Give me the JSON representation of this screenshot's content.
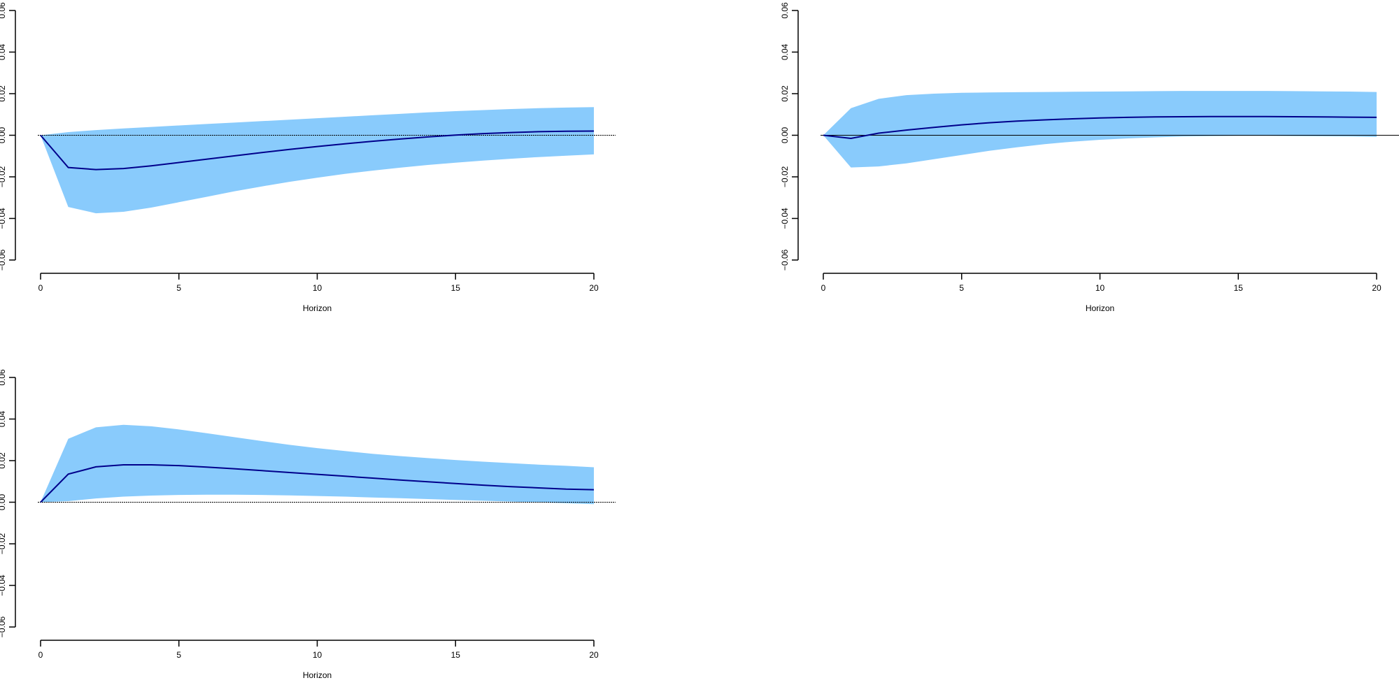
{
  "colors": {
    "band": "#89CBFC",
    "line": "#00008B",
    "axis": "#000000",
    "zero_line": "#000000"
  },
  "chart_data": [
    {
      "type": "area",
      "title": "",
      "xlabel": "Horizon",
      "ylabel": "",
      "xlim": [
        0,
        20
      ],
      "ylim": [
        -0.06,
        0.06
      ],
      "x_ticks": [
        "0",
        "5",
        "10",
        "15",
        "20"
      ],
      "y_ticks": [
        "−0.06",
        "−0.04",
        "−0.02",
        "0.00",
        "0.02",
        "0.04",
        "0.06"
      ],
      "grid": false,
      "zero_line": "dashed",
      "x": [
        0,
        1,
        2,
        3,
        4,
        5,
        6,
        7,
        8,
        9,
        10,
        11,
        12,
        13,
        14,
        15,
        16,
        17,
        18,
        19,
        20
      ],
      "series": [
        {
          "role": "lower",
          "values": [
            0,
            -0.0345,
            -0.0375,
            -0.0368,
            -0.0348,
            -0.0322,
            -0.0296,
            -0.027,
            -0.0246,
            -0.0224,
            -0.0204,
            -0.0186,
            -0.017,
            -0.0156,
            -0.0143,
            -0.0132,
            -0.0122,
            -0.0113,
            -0.0105,
            -0.0098,
            -0.0092
          ]
        },
        {
          "role": "upper",
          "values": [
            0,
            0.0015,
            0.0025,
            0.0033,
            0.004,
            0.0047,
            0.0054,
            0.0061,
            0.0068,
            0.0075,
            0.0082,
            0.0089,
            0.0096,
            0.0103,
            0.011,
            0.0116,
            0.0121,
            0.0126,
            0.013,
            0.0133,
            0.0135
          ]
        },
        {
          "role": "point",
          "values": [
            0,
            -0.0155,
            -0.0165,
            -0.016,
            -0.0147,
            -0.0131,
            -0.0115,
            -0.0099,
            -0.0083,
            -0.0068,
            -0.0054,
            -0.0041,
            -0.0029,
            -0.0018,
            -0.0008,
            0.0001,
            0.0008,
            0.0013,
            0.0017,
            0.0019,
            0.002
          ]
        }
      ]
    },
    {
      "type": "area",
      "title": "",
      "xlabel": "Horizon",
      "ylabel": "",
      "xlim": [
        0,
        20
      ],
      "ylim": [
        -0.06,
        0.06
      ],
      "x_ticks": [
        "0",
        "5",
        "10",
        "15",
        "20"
      ],
      "y_ticks": [
        "−0.06",
        "−0.04",
        "−0.02",
        "0.00",
        "0.02",
        "0.04",
        "0.06"
      ],
      "grid": false,
      "zero_line": "solid",
      "x": [
        0,
        1,
        2,
        3,
        4,
        5,
        6,
        7,
        8,
        9,
        10,
        11,
        12,
        13,
        14,
        15,
        16,
        17,
        18,
        19,
        20
      ],
      "series": [
        {
          "role": "lower",
          "values": [
            0,
            -0.0155,
            -0.015,
            -0.0135,
            -0.0115,
            -0.0095,
            -0.0075,
            -0.0058,
            -0.0043,
            -0.0031,
            -0.0022,
            -0.0015,
            -0.001,
            -0.0006,
            -0.0004,
            -0.0003,
            -0.0003,
            -0.0004,
            -0.0005,
            -0.0006,
            -0.0008
          ]
        },
        {
          "role": "upper",
          "values": [
            0,
            0.013,
            0.0175,
            0.0193,
            0.02,
            0.0204,
            0.0206,
            0.0207,
            0.0208,
            0.0209,
            0.021,
            0.0211,
            0.0212,
            0.0213,
            0.0213,
            0.0213,
            0.0213,
            0.0212,
            0.0211,
            0.021,
            0.0208
          ]
        },
        {
          "role": "point",
          "values": [
            0,
            -0.0015,
            0.001,
            0.0025,
            0.0038,
            0.005,
            0.006,
            0.0068,
            0.0074,
            0.0079,
            0.0083,
            0.0086,
            0.0088,
            0.0089,
            0.009,
            0.009,
            0.009,
            0.0089,
            0.0088,
            0.0087,
            0.0086
          ]
        }
      ]
    },
    {
      "type": "area",
      "title": "",
      "xlabel": "Horizon",
      "ylabel": "",
      "xlim": [
        0,
        20
      ],
      "ylim": [
        -0.06,
        0.06
      ],
      "x_ticks": [
        "0",
        "5",
        "10",
        "15",
        "20"
      ],
      "y_ticks": [
        "−0.06",
        "−0.04",
        "−0.02",
        "0.00",
        "0.02",
        "0.04",
        "0.06"
      ],
      "grid": false,
      "zero_line": "dashed",
      "x": [
        0,
        1,
        2,
        3,
        4,
        5,
        6,
        7,
        8,
        9,
        10,
        11,
        12,
        13,
        14,
        15,
        16,
        17,
        18,
        19,
        20
      ],
      "series": [
        {
          "role": "lower",
          "values": [
            0,
            0.0005,
            0.0018,
            0.0027,
            0.0032,
            0.0035,
            0.0036,
            0.0036,
            0.0035,
            0.0033,
            0.003,
            0.0027,
            0.0023,
            0.0019,
            0.0015,
            0.0011,
            0.0007,
            0.0003,
            -0.0001,
            -0.0005,
            -0.0009
          ]
        },
        {
          "role": "upper",
          "values": [
            0,
            0.0305,
            0.036,
            0.0372,
            0.0365,
            0.035,
            0.0332,
            0.0313,
            0.0294,
            0.0276,
            0.026,
            0.0246,
            0.0233,
            0.0222,
            0.0212,
            0.0203,
            0.0195,
            0.0188,
            0.0181,
            0.0175,
            0.0168
          ]
        },
        {
          "role": "point",
          "values": [
            0,
            0.0135,
            0.017,
            0.018,
            0.018,
            0.0176,
            0.0169,
            0.0161,
            0.0152,
            0.0143,
            0.0134,
            0.0125,
            0.0116,
            0.0107,
            0.0098,
            0.009,
            0.0082,
            0.0075,
            0.0069,
            0.0063,
            0.006
          ]
        }
      ]
    }
  ]
}
